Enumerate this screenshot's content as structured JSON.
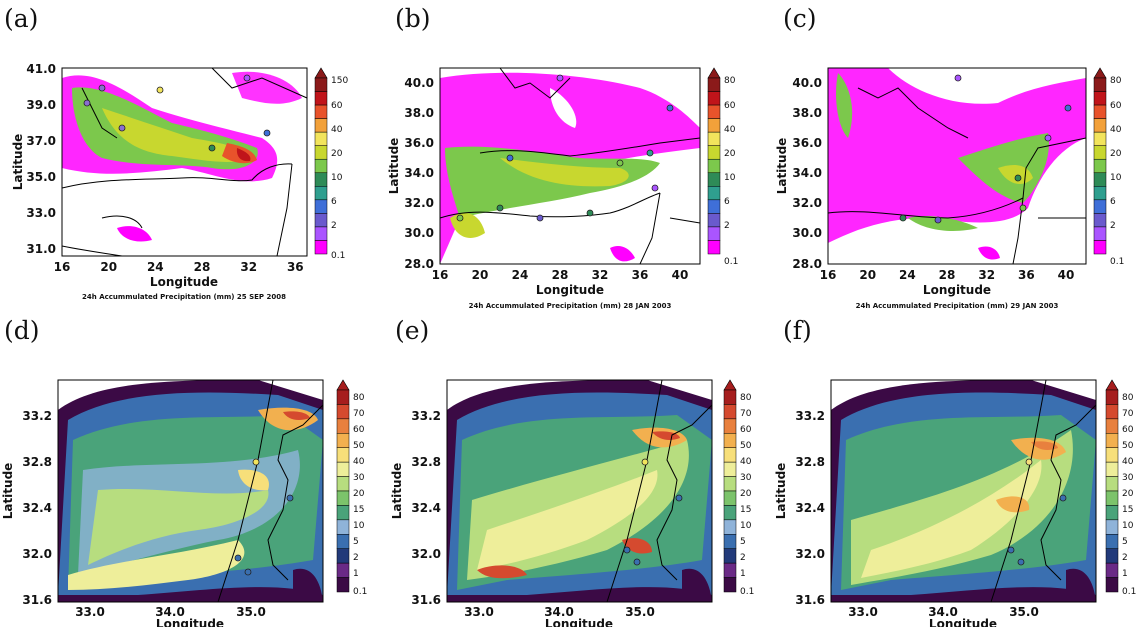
{
  "colors": {
    "top_scale": [
      "#ff00ff",
      "#aa55ff",
      "#6a5acd",
      "#3f6fd8",
      "#2f9f8f",
      "#2e8b57",
      "#7cc84c",
      "#c8d72f",
      "#f2e45c",
      "#f2a13a",
      "#e8532b",
      "#c0141a",
      "#8b1a1a"
    ],
    "bottom_scale": [
      "#3b0a45",
      "#6a2a86",
      "#223a7a",
      "#3a6fb0",
      "#8fb3d9",
      "#4aa37a",
      "#7cc36b",
      "#b7dd7f",
      "#eeee9a",
      "#f7df7a",
      "#f2b04f",
      "#e8803e",
      "#d54a2f",
      "#a61e1e"
    ]
  },
  "panels": [
    {
      "label": "(a)",
      "ylabel": "Latitude",
      "xlabel": "Longitude",
      "caption": "24h Accummulated Precipitation (mm)  25 SEP 2008",
      "xticks": [
        "16",
        "20",
        "24",
        "28",
        "32",
        "36"
      ],
      "yticks": [
        "41.0",
        "39.0",
        "37.0",
        "35.0",
        "33.0",
        "31.0"
      ],
      "cbticks": [
        "150",
        "60",
        "40",
        "20",
        "10",
        "6",
        "2",
        "0.1"
      ]
    },
    {
      "label": "(b)",
      "ylabel": "Latitude",
      "xlabel": "Longitude",
      "caption": "24h Accummulated Precipitation (mm)  28 JAN 2003",
      "xticks": [
        "16",
        "20",
        "24",
        "28",
        "32",
        "36",
        "40"
      ],
      "yticks": [
        "40.0",
        "38.0",
        "36.0",
        "34.0",
        "32.0",
        "30.0",
        "28.0"
      ],
      "cbticks": [
        "80",
        "60",
        "40",
        "20",
        "10",
        "6",
        "2",
        "0.1"
      ]
    },
    {
      "label": "(c)",
      "ylabel": "Latitude",
      "xlabel": "Longitude",
      "caption": "24h Accummulated Precipitation (mm)  29 JAN 2003",
      "xticks": [
        "16",
        "20",
        "24",
        "28",
        "32",
        "36",
        "40"
      ],
      "yticks": [
        "40.0",
        "38.0",
        "36.0",
        "34.0",
        "32.0",
        "30.0",
        "28.0"
      ],
      "cbticks": [
        "80",
        "60",
        "40",
        "20",
        "10",
        "6",
        "2",
        "0.1"
      ]
    },
    {
      "label": "(d)",
      "ylabel": "Latitude",
      "xlabel": "Longitude",
      "caption": "",
      "xticks": [
        "33.0",
        "34.0",
        "35.0"
      ],
      "yticks": [
        "33.2",
        "32.8",
        "32.4",
        "32.0",
        "31.6"
      ],
      "cbticks": [
        "80",
        "70",
        "60",
        "50",
        "40",
        "30",
        "20",
        "15",
        "10",
        "5",
        "2",
        "1",
        "0.1"
      ]
    },
    {
      "label": "(e)",
      "ylabel": "Latitude",
      "xlabel": "Longitude",
      "caption": "",
      "xticks": [
        "33.0",
        "34.0",
        "35.0"
      ],
      "yticks": [
        "33.2",
        "32.8",
        "32.4",
        "32.0",
        "31.6"
      ],
      "cbticks": [
        "80",
        "70",
        "60",
        "50",
        "40",
        "30",
        "20",
        "15",
        "10",
        "5",
        "2",
        "1",
        "0.1"
      ]
    },
    {
      "label": "(f)",
      "ylabel": "Latitude",
      "xlabel": "Longitude",
      "caption": "",
      "xticks": [
        "33.0",
        "34.0",
        "35.0"
      ],
      "yticks": [
        "33.2",
        "32.8",
        "32.4",
        "32.0",
        "31.6"
      ],
      "cbticks": [
        "80",
        "70",
        "60",
        "50",
        "40",
        "30",
        "20",
        "15",
        "10",
        "5",
        "2",
        "1",
        "0.1"
      ]
    }
  ],
  "chart_data": [
    {
      "type": "heatmap",
      "title": "24h Accummulated Precipitation (mm)  25 SEP 2008",
      "xlabel": "Longitude",
      "ylabel": "Latitude",
      "xlim": [
        16,
        37
      ],
      "ylim": [
        30.5,
        41
      ],
      "colorbar_levels": [
        0.1,
        2,
        6,
        10,
        20,
        40,
        60,
        150
      ]
    },
    {
      "type": "heatmap",
      "title": "24h Accummulated Precipitation (mm)  28 JAN 2003",
      "xlabel": "Longitude",
      "ylabel": "Latitude",
      "xlim": [
        16,
        42
      ],
      "ylim": [
        28,
        41
      ],
      "colorbar_levels": [
        0.1,
        2,
        6,
        10,
        20,
        40,
        60,
        80
      ]
    },
    {
      "type": "heatmap",
      "title": "24h Accummulated Precipitation (mm)  29 JAN 2003",
      "xlabel": "Longitude",
      "ylabel": "Latitude",
      "xlim": [
        16,
        42
      ],
      "ylim": [
        28,
        41
      ],
      "colorbar_levels": [
        0.1,
        2,
        6,
        10,
        20,
        40,
        60,
        80
      ]
    },
    {
      "type": "heatmap",
      "xlabel": "Longitude",
      "ylabel": "Latitude",
      "xlim": [
        32.6,
        35.9
      ],
      "ylim": [
        31.6,
        33.5
      ],
      "colorbar_levels": [
        0.1,
        1,
        2,
        5,
        10,
        15,
        20,
        30,
        40,
        50,
        60,
        70,
        80
      ]
    },
    {
      "type": "heatmap",
      "xlabel": "Longitude",
      "ylabel": "Latitude",
      "xlim": [
        32.6,
        35.9
      ],
      "ylim": [
        31.6,
        33.5
      ],
      "colorbar_levels": [
        0.1,
        1,
        2,
        5,
        10,
        15,
        20,
        30,
        40,
        50,
        60,
        70,
        80
      ]
    },
    {
      "type": "heatmap",
      "xlabel": "Longitude",
      "ylabel": "Latitude",
      "xlim": [
        32.6,
        35.9
      ],
      "ylim": [
        31.6,
        33.5
      ],
      "colorbar_levels": [
        0.1,
        1,
        2,
        5,
        10,
        15,
        20,
        30,
        40,
        50,
        60,
        70,
        80
      ]
    }
  ]
}
